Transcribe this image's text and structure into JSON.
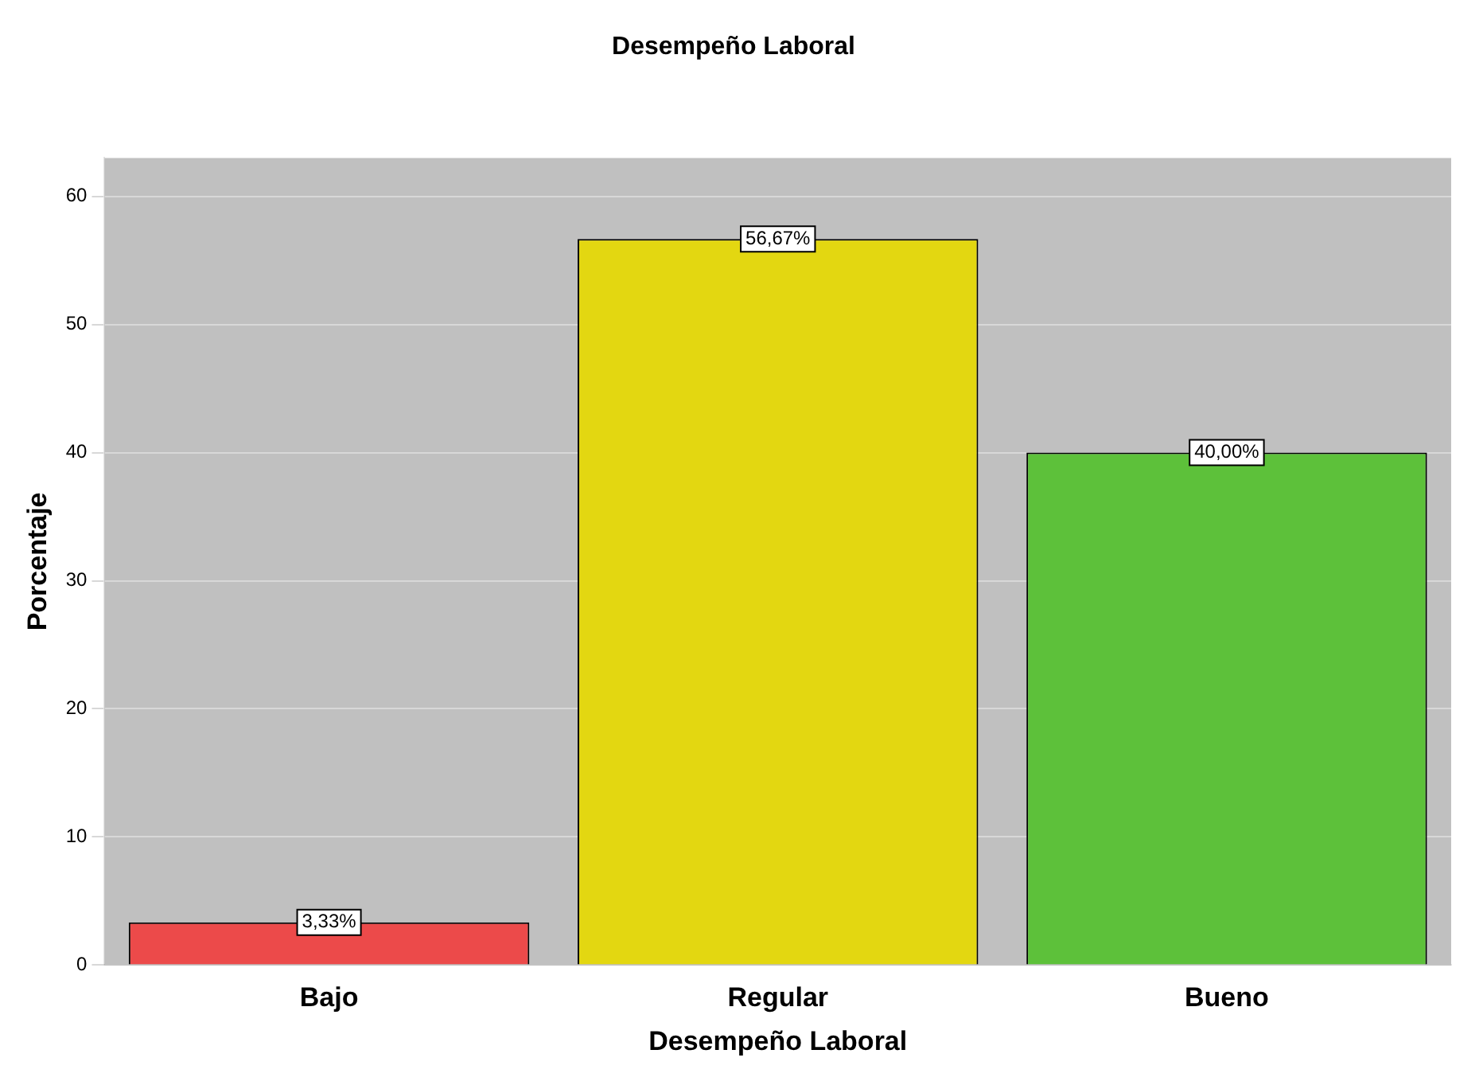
{
  "chart_data": {
    "type": "bar",
    "title": "Desempeño Laboral",
    "xlabel": "Desempeño Laboral",
    "ylabel": "Porcentaje",
    "categories": [
      "Bajo",
      "Regular",
      "Bueno"
    ],
    "values": [
      3.33,
      56.67,
      40.0
    ],
    "colors": [
      "#ec4a4a",
      "#e3d711",
      "#5dc13a"
    ],
    "value_labels": [
      "3,33%",
      "56,67%",
      "40,00%"
    ],
    "ylim": [
      0,
      63
    ],
    "yticks": [
      0,
      10,
      20,
      30,
      40,
      50,
      60
    ],
    "grid": "y"
  }
}
